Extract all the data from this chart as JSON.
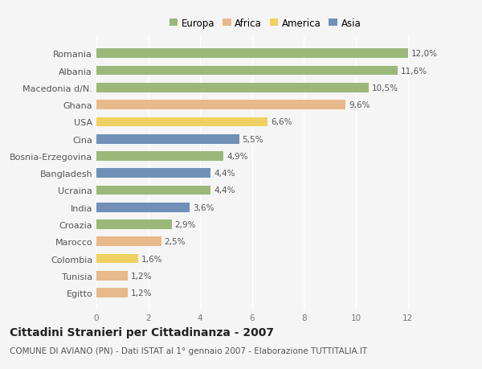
{
  "countries": [
    "Romania",
    "Albania",
    "Macedonia d/N.",
    "Ghana",
    "USA",
    "Cina",
    "Bosnia-Erzegovina",
    "Bangladesh",
    "Ucraina",
    "India",
    "Croazia",
    "Marocco",
    "Colombia",
    "Tunisia",
    "Egitto"
  ],
  "values": [
    12.0,
    11.6,
    10.5,
    9.6,
    6.6,
    5.5,
    4.9,
    4.4,
    4.4,
    3.6,
    2.9,
    2.5,
    1.6,
    1.2,
    1.2
  ],
  "labels": [
    "12,0%",
    "11,6%",
    "10,5%",
    "9,6%",
    "6,6%",
    "5,5%",
    "4,9%",
    "4,4%",
    "4,4%",
    "3,6%",
    "2,9%",
    "2,5%",
    "1,6%",
    "1,2%",
    "1,2%"
  ],
  "continents": [
    "Europa",
    "Europa",
    "Europa",
    "Africa",
    "America",
    "Asia",
    "Europa",
    "Asia",
    "Europa",
    "Asia",
    "Europa",
    "Africa",
    "America",
    "Africa",
    "Africa"
  ],
  "colors": {
    "Europa": "#9bb87a",
    "Africa": "#e8b98a",
    "America": "#f0d060",
    "Asia": "#7090b8"
  },
  "legend_order": [
    "Europa",
    "Africa",
    "America",
    "Asia"
  ],
  "xlim": [
    0,
    13
  ],
  "xticks": [
    0,
    2,
    4,
    6,
    8,
    10,
    12
  ],
  "title": "Cittadini Stranieri per Cittadinanza - 2007",
  "subtitle": "COMUNE DI AVIANO (PN) - Dati ISTAT al 1° gennaio 2007 - Elaborazione TUTTITALIA.IT",
  "bg_color": "#f5f5f5",
  "bar_height": 0.55,
  "title_fontsize": 10,
  "subtitle_fontsize": 7.5,
  "label_fontsize": 7.5,
  "legend_fontsize": 8.5,
  "ytick_fontsize": 8
}
